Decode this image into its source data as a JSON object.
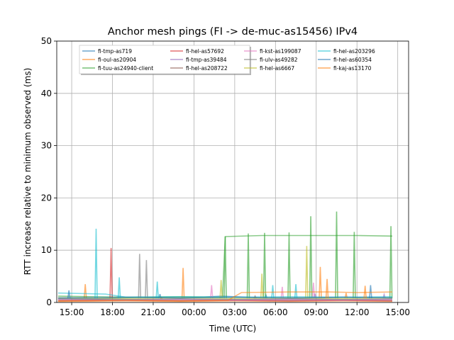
{
  "chart_data": {
    "type": "line",
    "title": "Anchor mesh pings (FI -> de-muc-as15456) IPv4",
    "xlabel": "Time (UTC)",
    "ylabel": "RTT increase relative to minimum observed (ms)",
    "xlim": [
      -1.1,
      24.8
    ],
    "ylim": [
      0,
      50
    ],
    "x_unit": "hours relative to 15:00 UTC",
    "xticks": [
      {
        "x": 0,
        "label": "15:00"
      },
      {
        "x": 3,
        "label": "18:00"
      },
      {
        "x": 6,
        "label": "21:00"
      },
      {
        "x": 9,
        "label": "00:00"
      },
      {
        "x": 12,
        "label": "03:00"
      },
      {
        "x": 15,
        "label": "06:00"
      },
      {
        "x": 18,
        "label": "09:00"
      },
      {
        "x": 21,
        "label": "12:00"
      },
      {
        "x": 24,
        "label": "15:00"
      }
    ],
    "yticks": [
      0,
      10,
      20,
      30,
      40,
      50
    ],
    "grid": true,
    "legend_position": "top",
    "series": [
      {
        "name": "fi-tmp-as719",
        "color": "#1f77b4",
        "points": [
          [
            -1,
            0.8
          ],
          [
            2,
            0.7
          ],
          [
            5,
            1.0
          ],
          [
            8,
            0.8
          ],
          [
            11,
            1.2
          ],
          [
            14,
            0.9
          ],
          [
            17,
            0.8
          ],
          [
            20,
            1.0
          ],
          [
            23.6,
            0.9
          ]
        ],
        "spikes": [
          [
            6.5,
            1.6
          ],
          [
            14.3,
            1.4
          ]
        ]
      },
      {
        "name": "fi-oul-as20904",
        "color": "#ff7f0e",
        "points": [
          [
            -1,
            0.2
          ],
          [
            4,
            0.3
          ],
          [
            8,
            0.2
          ],
          [
            12,
            0.3
          ],
          [
            16,
            0.2
          ],
          [
            20,
            0.3
          ],
          [
            23.6,
            0.2
          ]
        ],
        "spikes": [
          [
            1,
            3.5
          ],
          [
            8.2,
            6.6
          ],
          [
            18.3,
            6.8
          ],
          [
            20.2,
            1.8
          ]
        ]
      },
      {
        "name": "fi-tuu-as24940-client",
        "color": "#2ca02c",
        "points": [
          [
            -1,
            1.2
          ],
          [
            4,
            1.0
          ],
          [
            8,
            1.1
          ],
          [
            11.1,
            1.0
          ],
          [
            11.3,
            12.6
          ],
          [
            14,
            12.8
          ],
          [
            17,
            12.8
          ],
          [
            19.5,
            12.8
          ],
          [
            21,
            12.8
          ],
          [
            23.6,
            12.7
          ]
        ],
        "spikes": [
          [
            11.3,
            12.6
          ],
          [
            13.0,
            13.2
          ],
          [
            14.2,
            13.3
          ],
          [
            16.0,
            13.4
          ],
          [
            17.6,
            16.5
          ],
          [
            19.5,
            17.4
          ],
          [
            20.8,
            13.5
          ],
          [
            23.5,
            14.6
          ]
        ]
      },
      {
        "name": "fi-hel-as57692",
        "color": "#d62728",
        "points": [
          [
            -1,
            0.3
          ],
          [
            4,
            0.4
          ],
          [
            8,
            0.3
          ],
          [
            12,
            0.4
          ],
          [
            16,
            0.3
          ],
          [
            20,
            0.4
          ],
          [
            23.6,
            0.3
          ]
        ],
        "spikes": [
          [
            2.9,
            10.4
          ],
          [
            6.6,
            0.9
          ]
        ]
      },
      {
        "name": "fi-tmp-as39484",
        "color": "#9467bd",
        "points": [
          [
            -1,
            0.6
          ],
          [
            4,
            0.5
          ],
          [
            8,
            0.6
          ],
          [
            12,
            0.5
          ],
          [
            16,
            0.6
          ],
          [
            20,
            0.5
          ],
          [
            23.6,
            0.6
          ]
        ],
        "spikes": [
          [
            17.9,
            1.7
          ],
          [
            23.0,
            1.5
          ]
        ]
      },
      {
        "name": "fi-hel-as208722",
        "color": "#8c564b",
        "points": [
          [
            -1,
            0.4
          ],
          [
            4,
            0.5
          ],
          [
            8,
            0.4
          ],
          [
            12,
            0.5
          ],
          [
            16,
            0.4
          ],
          [
            20,
            0.5
          ],
          [
            23.6,
            0.4
          ]
        ],
        "spikes": [
          [
            13.5,
            1.2
          ]
        ]
      },
      {
        "name": "fi-kst-as199087",
        "color": "#e377c2",
        "points": [
          [
            -1,
            0.5
          ],
          [
            4,
            0.4
          ],
          [
            8,
            0.5
          ],
          [
            12,
            0.4
          ],
          [
            16,
            0.5
          ],
          [
            20,
            0.4
          ],
          [
            23.6,
            0.5
          ]
        ],
        "spikes": [
          [
            10.3,
            3.3
          ],
          [
            15.5,
            3.0
          ],
          [
            17.8,
            3.8
          ]
        ]
      },
      {
        "name": "fi-ulv-as49282",
        "color": "#7f7f7f",
        "points": [
          [
            -1,
            0.7
          ],
          [
            4,
            0.6
          ],
          [
            8,
            0.7
          ],
          [
            12,
            0.6
          ],
          [
            16,
            0.7
          ],
          [
            20,
            0.6
          ],
          [
            23.6,
            0.7
          ]
        ],
        "spikes": [
          [
            5.0,
            9.3
          ],
          [
            5.5,
            8.1
          ]
        ]
      },
      {
        "name": "fi-hel-as6667",
        "color": "#bcbd22",
        "points": [
          [
            -1,
            0.9
          ],
          [
            4,
            0.8
          ],
          [
            8,
            0.9
          ],
          [
            12,
            0.8
          ],
          [
            16,
            0.9
          ],
          [
            20,
            0.8
          ],
          [
            23.6,
            0.9
          ]
        ],
        "spikes": [
          [
            14.0,
            5.5
          ],
          [
            17.3,
            10.8
          ],
          [
            11.0,
            4.3
          ]
        ]
      },
      {
        "name": "fi-hel-as203296",
        "color": "#17becf",
        "points": [
          [
            -1,
            1.8
          ],
          [
            1,
            1.7
          ],
          [
            2.5,
            1.6
          ],
          [
            4,
            1.0
          ],
          [
            8,
            1.1
          ],
          [
            12,
            1.0
          ],
          [
            16,
            1.1
          ],
          [
            20,
            1.0
          ],
          [
            23.6,
            1.1
          ]
        ],
        "spikes": [
          [
            1.8,
            14.1
          ],
          [
            3.5,
            4.8
          ],
          [
            6.3,
            4.0
          ],
          [
            14.8,
            3.3
          ],
          [
            16.5,
            3.5
          ]
        ]
      },
      {
        "name": "fi-hel-as60354",
        "color": "#1f77b4",
        "points": [
          [
            -1,
            0.9
          ],
          [
            4,
            1.0
          ],
          [
            8,
            0.9
          ],
          [
            12,
            1.0
          ],
          [
            16,
            0.9
          ],
          [
            20,
            1.0
          ],
          [
            23.6,
            0.9
          ]
        ],
        "spikes": [
          [
            -0.2,
            2.3
          ],
          [
            22.0,
            3.3
          ]
        ]
      },
      {
        "name": "fi-kaj-as13170",
        "color": "#ff7f0e",
        "points": [
          [
            -1,
            0.3
          ],
          [
            4,
            0.4
          ],
          [
            8,
            0.3
          ],
          [
            11.5,
            0.4
          ],
          [
            12.5,
            1.9
          ],
          [
            16,
            2.0
          ],
          [
            19,
            2.0
          ],
          [
            21,
            1.9
          ],
          [
            23.6,
            2.0
          ]
        ],
        "spikes": [
          [
            18.8,
            4.5
          ],
          [
            21.6,
            3.2
          ]
        ]
      }
    ]
  }
}
